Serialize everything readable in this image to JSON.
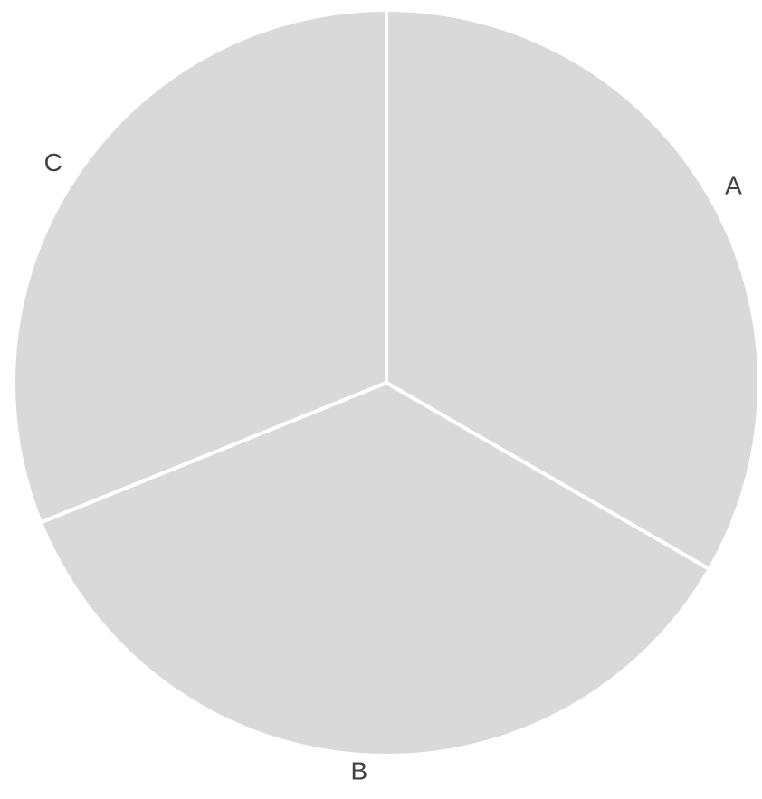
{
  "chart_data": {
    "type": "pie",
    "categories": [
      "A",
      "B",
      "C"
    ],
    "values": [
      120,
      128,
      112
    ],
    "colors": {
      "slice_fill": "#d9d9d9",
      "separator": "#ffffff",
      "label": "#404040"
    },
    "legend": "none",
    "labels_position": "outside"
  }
}
